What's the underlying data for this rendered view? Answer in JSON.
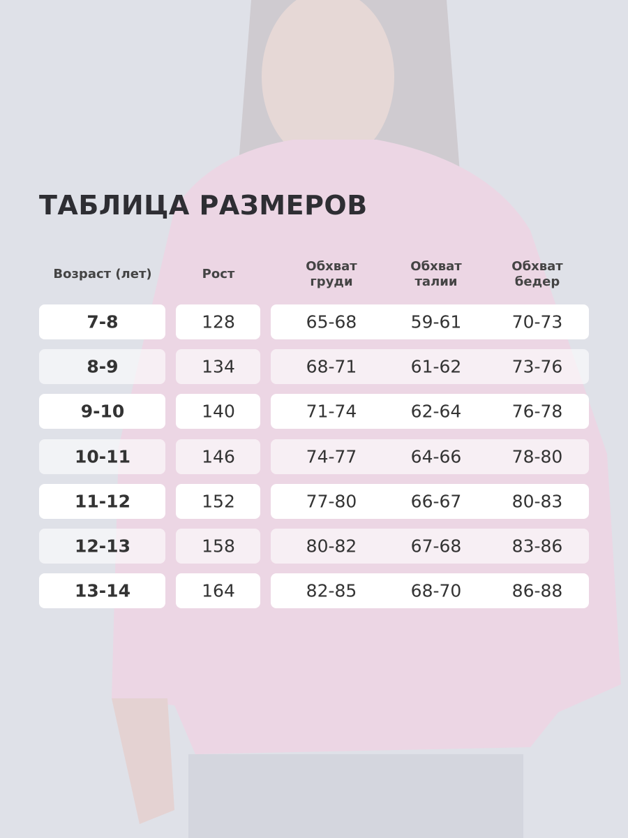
{
  "title": "ТАБЛИЦА РАЗМЕРОВ",
  "table": {
    "header": [
      "Возраст (лет)",
      "Рост",
      "Обхват груди",
      "Обхват талии",
      "Обхват бедер"
    ],
    "rows": [
      [
        "7-8",
        "128",
        "65-68",
        "59-61",
        "70-73"
      ],
      [
        "8-9",
        "134",
        "68-71",
        "61-62",
        "73-76"
      ],
      [
        "9-10",
        "140",
        "71-74",
        "62-64",
        "76-78"
      ],
      [
        "10-11",
        "146",
        "74-77",
        "64-66",
        "78-80"
      ],
      [
        "11-12",
        "152",
        "77-80",
        "66-67",
        "80-83"
      ],
      [
        "12-13",
        "158",
        "80-82",
        "67-68",
        "83-86"
      ],
      [
        "13-14",
        "164",
        "82-85",
        "68-70",
        "86-88"
      ]
    ]
  }
}
